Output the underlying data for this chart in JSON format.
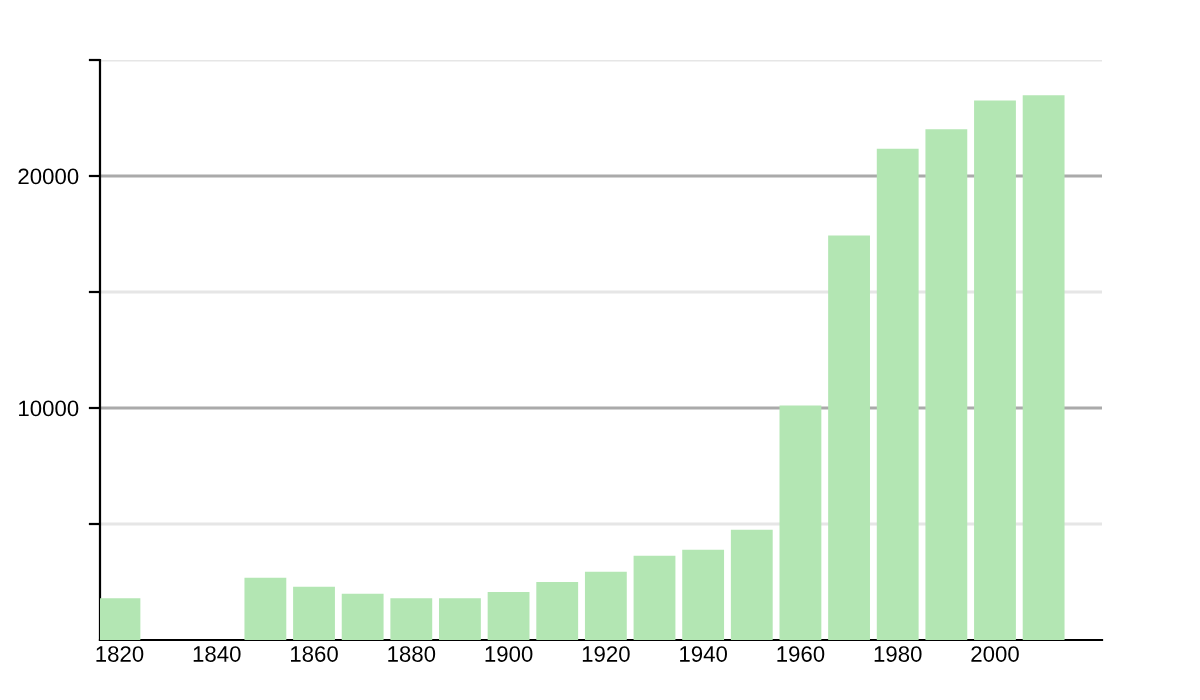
{
  "chart_data": {
    "type": "bar",
    "x": [
      1820,
      1850,
      1860,
      1870,
      1880,
      1890,
      1900,
      1910,
      1920,
      1930,
      1940,
      1950,
      1960,
      1970,
      1980,
      1990,
      2000,
      2010
    ],
    "values": [
      1800,
      2680,
      2300,
      1990,
      1800,
      1800,
      2070,
      2500,
      2940,
      3630,
      3890,
      4750,
      10110,
      17430,
      21170,
      22010,
      23250,
      23480
    ],
    "color": "#b3e6b3",
    "xlim": [
      1816,
      2022
    ],
    "xticks": [
      1820,
      1840,
      1860,
      1880,
      1900,
      1920,
      1940,
      1960,
      1980,
      2000
    ],
    "ylim": [
      0,
      25000
    ],
    "yticks": [
      {
        "value": 5000,
        "label": null
      },
      10000,
      {
        "value": 15000,
        "label": null
      },
      20000,
      {
        "value": 25000,
        "label": null
      }
    ],
    "grid": "y"
  }
}
